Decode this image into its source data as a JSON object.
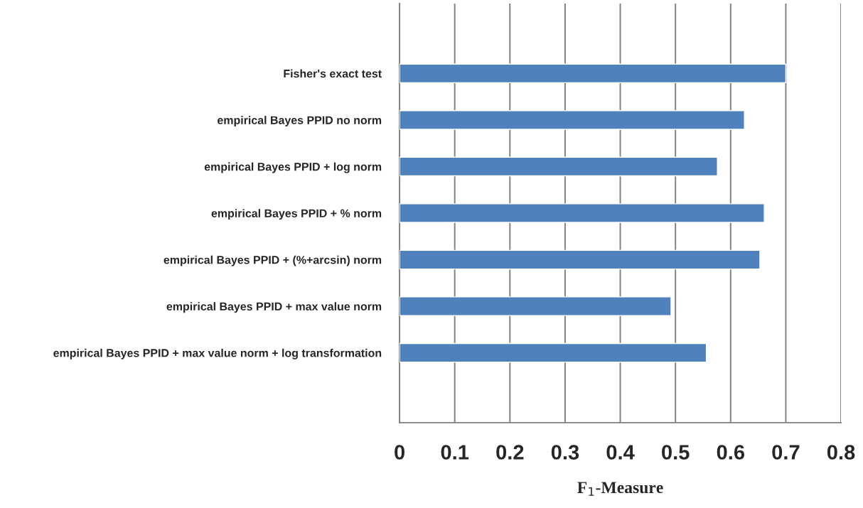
{
  "chart_data": {
    "type": "bar",
    "orientation": "horizontal",
    "xlabel": "F$_{1}$-Measure",
    "categories": [
      null,
      "Fisher's exact test",
      "empirical Bayes PPID no norm",
      "empirical Bayes PPID + log norm",
      "empirical Bayes PPID + % norm",
      "empirical Bayes PPID + (%+arcsin) norm",
      "empirical Bayes PPID + max value norm",
      "empirical Bayes PPID + max value norm + log transformation",
      null
    ],
    "values": [
      null,
      0.7,
      0.625,
      0.576,
      0.661,
      0.653,
      0.492,
      0.556,
      null
    ],
    "color": "#4f81bd",
    "xlim": [
      0,
      0.8
    ],
    "xticks": [
      0,
      0.1,
      0.2,
      0.3,
      0.4,
      0.5,
      0.6,
      0.7,
      0.8
    ],
    "grid": "x",
    "legend": false
  }
}
